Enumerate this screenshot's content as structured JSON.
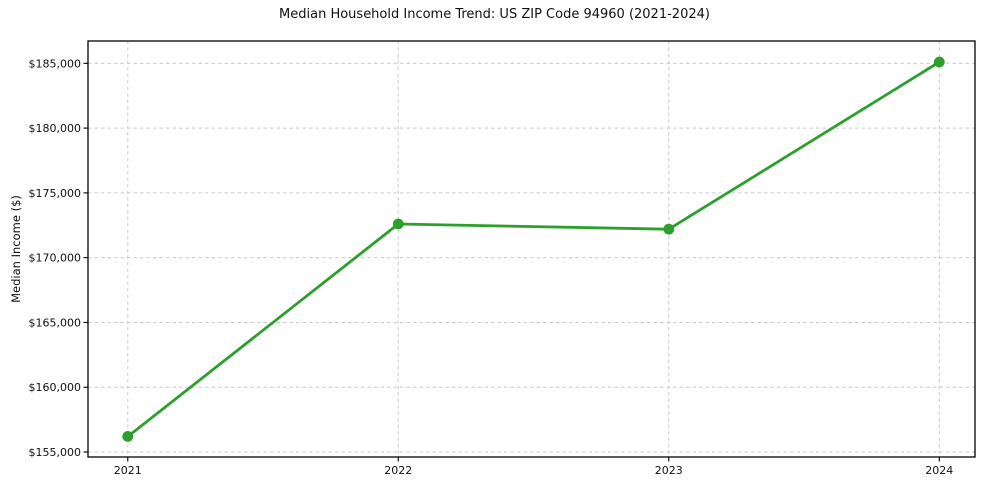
{
  "chart_data": {
    "type": "line",
    "title": "Median Household Income Trend: US ZIP Code 94960 (2021-2024)",
    "xlabel": "",
    "ylabel": "Median Income ($)",
    "x": [
      2021,
      2022,
      2023,
      2024
    ],
    "x_tick_labels": [
      "2021",
      "2022",
      "2023",
      "2024"
    ],
    "values": [
      156200,
      172600,
      172200,
      185100
    ],
    "y_ticks": [
      155000,
      160000,
      165000,
      170000,
      175000,
      180000,
      185000
    ],
    "y_tick_labels": [
      "$155,000",
      "$160,000",
      "$165,000",
      "$170,000",
      "$175,000",
      "$180,000",
      "$185,000"
    ],
    "xlim": [
      2020.853,
      2024.132
    ],
    "ylim": [
      154614,
      186723
    ],
    "grid": true,
    "legend": "none",
    "line_color": "#2ca02c",
    "marker": "circle",
    "background_color": "#ffffff",
    "grid_color": "#cccccc",
    "spine_color": "#000000"
  }
}
